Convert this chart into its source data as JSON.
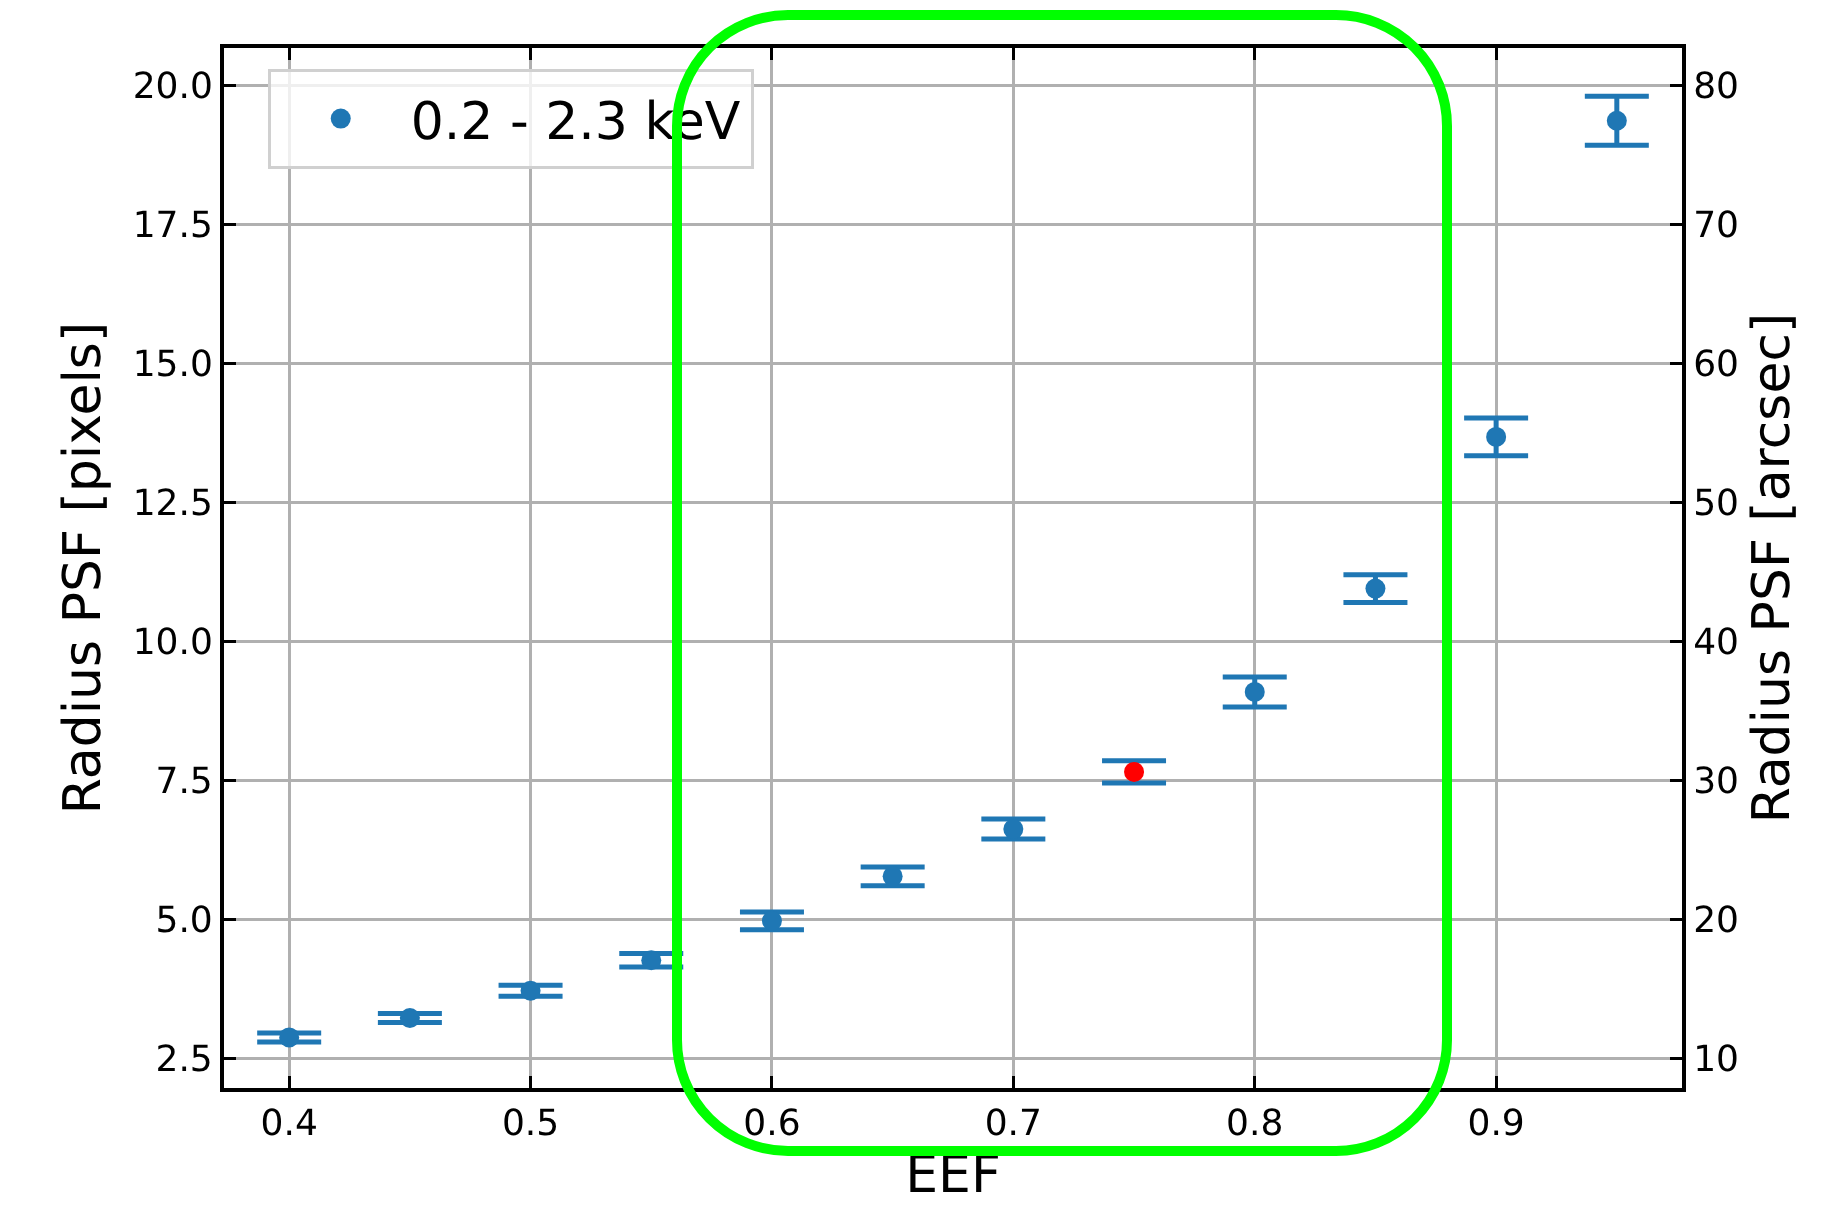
{
  "chart_data": {
    "type": "scatter",
    "xlabel": "EEF",
    "ylabel": "Radius PSF [pixels]",
    "y2label": "Radius PSF [arcsec]",
    "x": [
      0.4,
      0.45,
      0.5,
      0.55,
      0.6,
      0.65,
      0.7,
      0.75,
      0.8,
      0.85,
      0.9,
      0.95
    ],
    "series": [
      {
        "name": "0.2 - 2.3 keV",
        "color": "#1f77b4",
        "colors": [
          "#1f77b4",
          "#1f77b4",
          "#1f77b4",
          "#1f77b4",
          "#1f77b4",
          "#1f77b4",
          "#1f77b4",
          "#ff0000",
          "#1f77b4",
          "#1f77b4",
          "#1f77b4",
          "#1f77b4"
        ],
        "values": [
          2.87,
          3.22,
          3.71,
          4.26,
          4.97,
          5.77,
          6.62,
          7.65,
          9.09,
          10.95,
          13.68,
          19.37
        ],
        "errors": [
          0.08,
          0.08,
          0.1,
          0.12,
          0.16,
          0.17,
          0.18,
          0.2,
          0.27,
          0.25,
          0.34,
          0.44
        ]
      }
    ],
    "xlim": [
      0.373,
      0.977
    ],
    "xticks": [
      {
        "value": 0.4,
        "label": "0.4"
      },
      {
        "value": 0.5,
        "label": "0.5"
      },
      {
        "value": 0.6,
        "label": "0.6"
      },
      {
        "value": 0.7,
        "label": "0.7"
      },
      {
        "value": 0.8,
        "label": "0.8"
      },
      {
        "value": 0.9,
        "label": "0.9"
      }
    ],
    "ylim": [
      1.96,
      20.68
    ],
    "yticks": [
      {
        "value": 2.5,
        "label": "2.5"
      },
      {
        "value": 5,
        "label": "5.0"
      },
      {
        "value": 7.5,
        "label": "7.5"
      },
      {
        "value": 10,
        "label": "10.0"
      },
      {
        "value": 12.5,
        "label": "12.5"
      },
      {
        "value": 15,
        "label": "15.0"
      },
      {
        "value": 17.5,
        "label": "17.5"
      },
      {
        "value": 20,
        "label": "20.0"
      }
    ],
    "y2lim": [
      7.84,
      82.72
    ],
    "y2ticks": [
      10,
      20,
      30,
      40,
      50,
      60,
      70,
      80
    ],
    "grid": true,
    "legend": "top left",
    "marker": "circle"
  }
}
